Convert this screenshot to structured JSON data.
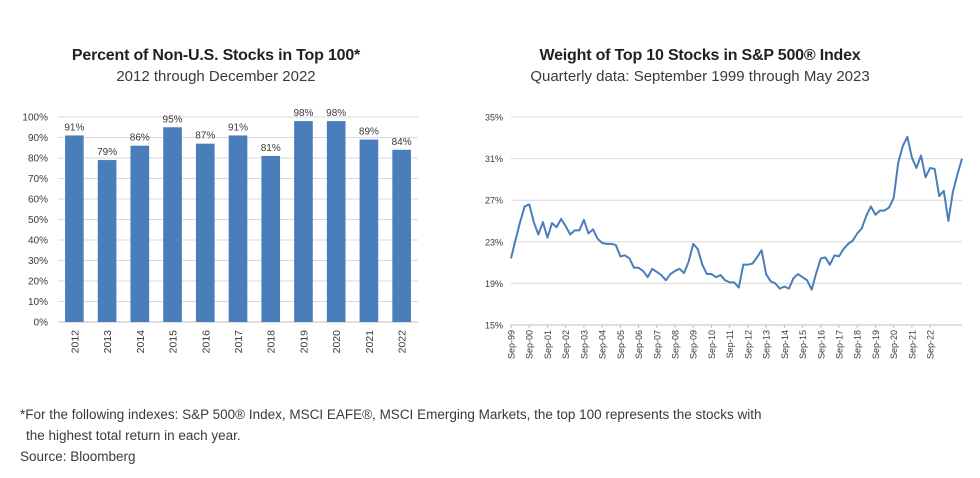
{
  "chart_data": [
    {
      "type": "bar",
      "title": "Percent of Non-U.S. Stocks in Top 100*",
      "subtitle": "2012 through December 2022",
      "categories": [
        "2012",
        "2013",
        "2014",
        "2015",
        "2016",
        "2017",
        "2018",
        "2019",
        "2020",
        "2021",
        "2022"
      ],
      "values": [
        91,
        79,
        86,
        95,
        87,
        91,
        81,
        98,
        98,
        89,
        84
      ],
      "data_labels": [
        "91%",
        "79%",
        "86%",
        "95%",
        "87%",
        "91%",
        "81%",
        "98%",
        "98%",
        "89%",
        "84%"
      ],
      "y_ticks": [
        "0%",
        "10%",
        "20%",
        "30%",
        "40%",
        "50%",
        "60%",
        "70%",
        "80%",
        "90%",
        "100%"
      ],
      "ylim": [
        0,
        100
      ],
      "grid": true,
      "bar_color": "#4a7ebb",
      "grid_color": "#d9d9d9"
    },
    {
      "type": "line",
      "title": "Weight of Top 10 Stocks in S&P 500® Index",
      "subtitle": "Quarterly data: September 1999 through May 2023",
      "y_ticks": [
        "15%",
        "19%",
        "23%",
        "27%",
        "31%",
        "35%"
      ],
      "ylim": [
        15,
        35
      ],
      "x_tick_labels": [
        "Sep-99",
        "Sep-00",
        "Sep-01",
        "Sep-02",
        "Sep-03",
        "Sep-04",
        "Sep-05",
        "Sep-06",
        "Sep-07",
        "Sep-08",
        "Sep-09",
        "Sep-10",
        "Sep-11",
        "Sep-12",
        "Sep-13",
        "Sep-14",
        "Sep-15",
        "Sep-16",
        "Sep-17",
        "Sep-18",
        "Sep-19",
        "Sep-20",
        "Sep-21",
        "Sep-22"
      ],
      "grid": true,
      "line_color": "#4a7ebb",
      "grid_color": "#d9d9d9",
      "series": [
        {
          "values": [
            21.4,
            23.2,
            24.9,
            26.4,
            26.6,
            24.9,
            23.7,
            24.9,
            23.4,
            24.8,
            24.4,
            25.2,
            24.5,
            23.7,
            24.1,
            24.1,
            25.1,
            23.8,
            24.2,
            23.3,
            22.9,
            22.8,
            22.8,
            22.7,
            21.6,
            21.7,
            21.4,
            20.5,
            20.5,
            20.2,
            19.6,
            20.4,
            20.1,
            19.8,
            19.3,
            19.9,
            20.2,
            20.4,
            20.0,
            21.1,
            22.8,
            22.3,
            20.8,
            19.9,
            19.9,
            19.6,
            19.8,
            19.3,
            19.1,
            19.1,
            18.6,
            20.8,
            20.8,
            20.9,
            21.5,
            22.2,
            19.9,
            19.2,
            19.0,
            18.5,
            18.7,
            18.5,
            19.5,
            19.9,
            19.6,
            19.3,
            18.4,
            20.0,
            21.4,
            21.5,
            20.8,
            21.7,
            21.6,
            22.3,
            22.8,
            23.1,
            23.8,
            24.3,
            25.5,
            26.4,
            25.6,
            26.0,
            26.0,
            26.3,
            27.2,
            30.6,
            32.2,
            33.1,
            31.1,
            30.1,
            31.3,
            29.2,
            30.1,
            30.0,
            27.4,
            27.9,
            25.0,
            27.8,
            29.5,
            31.0
          ],
          "x_start": "Sep-99",
          "x_end": "May-23"
        }
      ]
    }
  ],
  "footnote": {
    "line1": "*For the following indexes: S&P 500® Index, MSCI EAFE®, MSCI Emerging Markets, the top 100 represents the stocks with",
    "line2": "the highest total return in each year.",
    "source": "Source: Bloomberg"
  }
}
